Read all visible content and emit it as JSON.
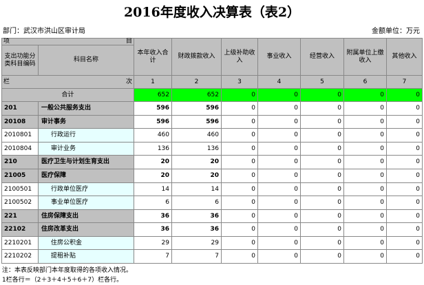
{
  "title": "2016年度收入决算表（表2）",
  "department": "部门：武汉市洪山区审计局",
  "unit": "金额单位：万元",
  "table": {
    "header_item": [
      "项",
      "目"
    ],
    "columns": [
      "支出功能分类科目编码",
      "科目名称",
      "本年收入合计",
      "财政拨款收入",
      "上级补助收入",
      "事业收入",
      "经营收入",
      "附属单位上缴收入",
      "其他收入"
    ],
    "column_index_label": [
      "栏",
      "次"
    ],
    "column_numbers": [
      1,
      2,
      3,
      4,
      5,
      6,
      7
    ],
    "total": {
      "label": "合计",
      "values": [
        652,
        652,
        0,
        0,
        0,
        0,
        0
      ]
    },
    "rows": [
      {
        "code": "201",
        "name": "一般公共服务支出",
        "values": [
          596,
          596,
          0,
          0,
          0,
          0,
          0
        ]
      },
      {
        "code": "20108",
        "name": "审计事务",
        "values": [
          596,
          596,
          0,
          0,
          0,
          0,
          0
        ]
      },
      {
        "code": "2010801",
        "name": "行政运行",
        "values": [
          460,
          460,
          0,
          0,
          0,
          0,
          0
        ]
      },
      {
        "code": "2010804",
        "name": "审计业务",
        "values": [
          136,
          136,
          0,
          0,
          0,
          0,
          0
        ]
      },
      {
        "code": "210",
        "name": "医疗卫生与计划生育支出",
        "values": [
          20,
          20,
          0,
          0,
          0,
          0,
          0
        ]
      },
      {
        "code": "21005",
        "name": "医疗保障",
        "values": [
          20,
          20,
          0,
          0,
          0,
          0,
          0
        ]
      },
      {
        "code": "2100501",
        "name": "行政单位医疗",
        "values": [
          14,
          14,
          0,
          0,
          0,
          0,
          0
        ]
      },
      {
        "code": "2100502",
        "name": "事业单位医疗",
        "values": [
          6,
          6,
          0,
          0,
          0,
          0,
          0
        ]
      },
      {
        "code": "221",
        "name": "住房保障支出",
        "values": [
          36,
          36,
          0,
          0,
          0,
          0,
          0
        ]
      },
      {
        "code": "22102",
        "name": "住房改革支出",
        "values": [
          36,
          36,
          0,
          0,
          0,
          0,
          0
        ]
      },
      {
        "code": "2210201",
        "name": "住房公积金",
        "values": [
          29,
          29,
          0,
          0,
          0,
          0,
          0
        ]
      },
      {
        "code": "2210202",
        "name": "提租补贴",
        "values": [
          7,
          7,
          0,
          0,
          0,
          0,
          0
        ]
      }
    ]
  },
  "notes": [
    "注：本表反映部门本年度取得的各项收入情况。",
    "1栏各行＝（2＋3＋4＋5＋6＋7）栏各行。"
  ]
}
